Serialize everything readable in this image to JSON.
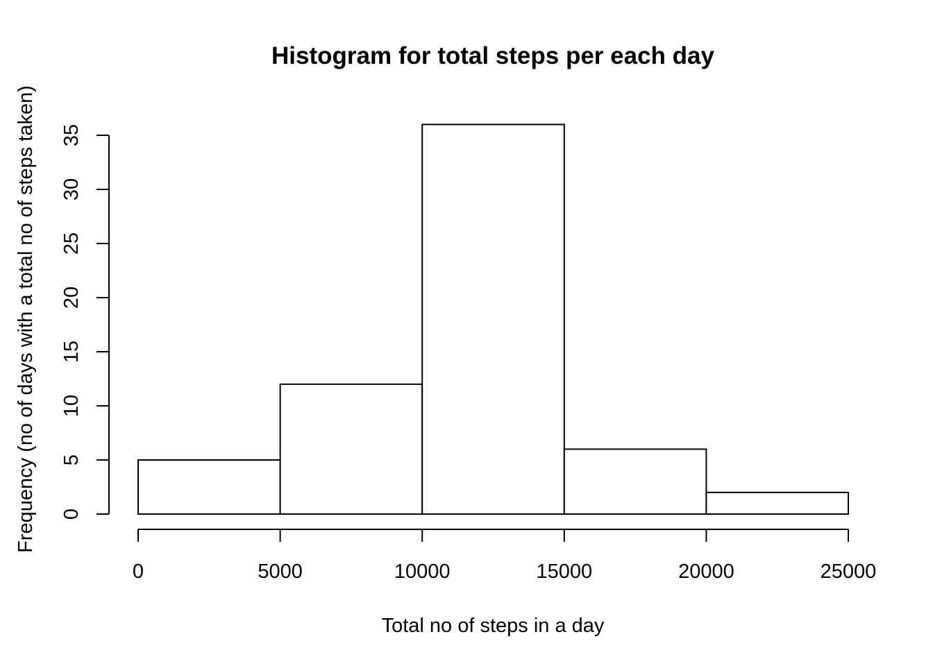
{
  "chart_data": {
    "type": "bar",
    "title": "Histogram for total steps per each day",
    "xlabel": "Total no of steps in a day",
    "ylabel": "Frequency (no of days with a total no of steps taken)",
    "bins": [
      {
        "start": 0,
        "end": 5000,
        "count": 5
      },
      {
        "start": 5000,
        "end": 10000,
        "count": 12
      },
      {
        "start": 10000,
        "end": 15000,
        "count": 36
      },
      {
        "start": 15000,
        "end": 20000,
        "count": 6
      },
      {
        "start": 20000,
        "end": 25000,
        "count": 2
      }
    ],
    "xlim": [
      0,
      25000
    ],
    "ylim": [
      0,
      35
    ],
    "xticks": [
      0,
      5000,
      10000,
      15000,
      20000,
      25000
    ],
    "yticks": [
      0,
      5,
      10,
      15,
      20,
      25,
      30,
      35
    ],
    "colors": {
      "fill": "#ffffff",
      "stroke": "#000000"
    },
    "grid": false
  }
}
